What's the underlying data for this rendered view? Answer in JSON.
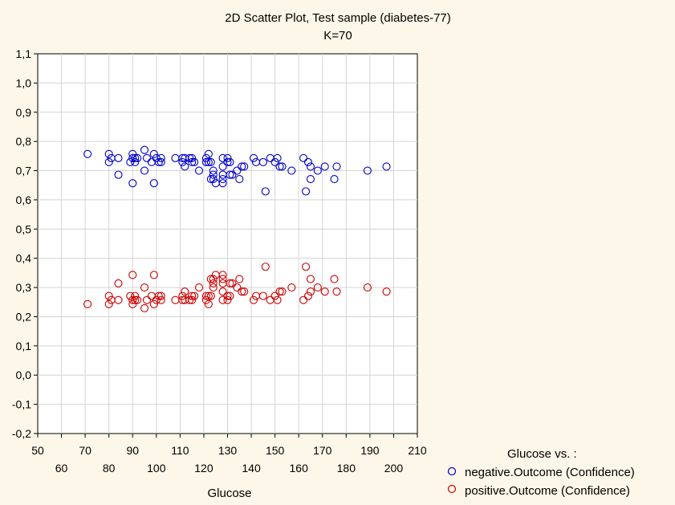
{
  "chart_data": {
    "type": "scatter",
    "title": "2D Scatter Plot, Test sample (diabetes-77)",
    "subtitle": "K=70",
    "xlabel": "Glucose",
    "ylabel": "",
    "xlim": [
      50,
      210
    ],
    "ylim": [
      -0.2,
      1.1
    ],
    "grid": true,
    "x_ticks_upper": [
      "50",
      "70",
      "90",
      "110",
      "130",
      "150",
      "170",
      "190",
      "210"
    ],
    "x_ticks_lower": [
      "60",
      "80",
      "100",
      "120",
      "140",
      "160",
      "180",
      "200"
    ],
    "y_ticks": [
      "1,1",
      "1,0",
      "0,9",
      "0,8",
      "0,7",
      "0,6",
      "0,5",
      "0,4",
      "0,3",
      "0,2",
      "0,1",
      "0,0",
      "-0,1",
      "-0,2"
    ],
    "legend": {
      "title": "Glucose  vs. :",
      "placement": "bottom-right"
    },
    "series": [
      {
        "name": "negative.Outcome (Confidence)",
        "color": "#0000CC",
        "marker": "circle-open",
        "points": [
          [
            71,
            0.757
          ],
          [
            80,
            0.757
          ],
          [
            80,
            0.729
          ],
          [
            81,
            0.743
          ],
          [
            84,
            0.743
          ],
          [
            84,
            0.686
          ],
          [
            89,
            0.729
          ],
          [
            90,
            0.757
          ],
          [
            90,
            0.657
          ],
          [
            90,
            0.743
          ],
          [
            91,
            0.729
          ],
          [
            91,
            0.743
          ],
          [
            92,
            0.743
          ],
          [
            95,
            0.771
          ],
          [
            95,
            0.7
          ],
          [
            96,
            0.743
          ],
          [
            98,
            0.729
          ],
          [
            99,
            0.757
          ],
          [
            99,
            0.657
          ],
          [
            100,
            0.743
          ],
          [
            101,
            0.729
          ],
          [
            102,
            0.743
          ],
          [
            102,
            0.729
          ],
          [
            108,
            0.743
          ],
          [
            111,
            0.743
          ],
          [
            111,
            0.729
          ],
          [
            112,
            0.743
          ],
          [
            112,
            0.714
          ],
          [
            114,
            0.743
          ],
          [
            115,
            0.743
          ],
          [
            115,
            0.729
          ],
          [
            116,
            0.729
          ],
          [
            118,
            0.7
          ],
          [
            121,
            0.729
          ],
          [
            121,
            0.743
          ],
          [
            122,
            0.729
          ],
          [
            122,
            0.757
          ],
          [
            123,
            0.729
          ],
          [
            123,
            0.671
          ],
          [
            124,
            0.7
          ],
          [
            124,
            0.686
          ],
          [
            124,
            0.671
          ],
          [
            125,
            0.657
          ],
          [
            128,
            0.686
          ],
          [
            128,
            0.671
          ],
          [
            128,
            0.657
          ],
          [
            128,
            0.714
          ],
          [
            128,
            0.743
          ],
          [
            130,
            0.743
          ],
          [
            130,
            0.729
          ],
          [
            131,
            0.686
          ],
          [
            131,
            0.729
          ],
          [
            132,
            0.686
          ],
          [
            134,
            0.7
          ],
          [
            135,
            0.671
          ],
          [
            136,
            0.714
          ],
          [
            137,
            0.714
          ],
          [
            141,
            0.743
          ],
          [
            142,
            0.729
          ],
          [
            145,
            0.729
          ],
          [
            146,
            0.629
          ],
          [
            148,
            0.743
          ],
          [
            150,
            0.729
          ],
          [
            151,
            0.743
          ],
          [
            152,
            0.714
          ],
          [
            153,
            0.714
          ],
          [
            157,
            0.7
          ],
          [
            162,
            0.743
          ],
          [
            163,
            0.629
          ],
          [
            164,
            0.729
          ],
          [
            165,
            0.671
          ],
          [
            165,
            0.714
          ],
          [
            168,
            0.7
          ],
          [
            171,
            0.714
          ],
          [
            175,
            0.671
          ],
          [
            176,
            0.714
          ],
          [
            189,
            0.7
          ],
          [
            197,
            0.714
          ]
        ]
      },
      {
        "name": "positive.Outcome (Confidence)",
        "color": "#CC0000",
        "marker": "circle-open",
        "points": [
          [
            71,
            0.243
          ],
          [
            80,
            0.243
          ],
          [
            80,
            0.271
          ],
          [
            81,
            0.257
          ],
          [
            84,
            0.257
          ],
          [
            84,
            0.314
          ],
          [
            89,
            0.271
          ],
          [
            90,
            0.243
          ],
          [
            90,
            0.343
          ],
          [
            90,
            0.257
          ],
          [
            91,
            0.271
          ],
          [
            91,
            0.257
          ],
          [
            92,
            0.257
          ],
          [
            95,
            0.229
          ],
          [
            95,
            0.3
          ],
          [
            96,
            0.257
          ],
          [
            98,
            0.271
          ],
          [
            99,
            0.243
          ],
          [
            99,
            0.343
          ],
          [
            100,
            0.257
          ],
          [
            101,
            0.271
          ],
          [
            102,
            0.257
          ],
          [
            102,
            0.271
          ],
          [
            108,
            0.257
          ],
          [
            111,
            0.257
          ],
          [
            111,
            0.271
          ],
          [
            112,
            0.257
          ],
          [
            112,
            0.286
          ],
          [
            114,
            0.257
          ],
          [
            115,
            0.257
          ],
          [
            115,
            0.271
          ],
          [
            116,
            0.271
          ],
          [
            118,
            0.3
          ],
          [
            121,
            0.271
          ],
          [
            121,
            0.257
          ],
          [
            122,
            0.271
          ],
          [
            122,
            0.243
          ],
          [
            123,
            0.271
          ],
          [
            123,
            0.329
          ],
          [
            124,
            0.3
          ],
          [
            124,
            0.314
          ],
          [
            124,
            0.329
          ],
          [
            125,
            0.343
          ],
          [
            128,
            0.314
          ],
          [
            128,
            0.329
          ],
          [
            128,
            0.343
          ],
          [
            128,
            0.286
          ],
          [
            128,
            0.257
          ],
          [
            130,
            0.257
          ],
          [
            130,
            0.271
          ],
          [
            131,
            0.314
          ],
          [
            131,
            0.271
          ],
          [
            132,
            0.314
          ],
          [
            134,
            0.3
          ],
          [
            135,
            0.329
          ],
          [
            136,
            0.286
          ],
          [
            137,
            0.286
          ],
          [
            141,
            0.257
          ],
          [
            142,
            0.271
          ],
          [
            145,
            0.271
          ],
          [
            146,
            0.371
          ],
          [
            148,
            0.257
          ],
          [
            150,
            0.271
          ],
          [
            151,
            0.257
          ],
          [
            152,
            0.286
          ],
          [
            153,
            0.286
          ],
          [
            157,
            0.3
          ],
          [
            162,
            0.257
          ],
          [
            163,
            0.371
          ],
          [
            164,
            0.271
          ],
          [
            165,
            0.329
          ],
          [
            165,
            0.286
          ],
          [
            168,
            0.3
          ],
          [
            171,
            0.286
          ],
          [
            175,
            0.329
          ],
          [
            176,
            0.286
          ],
          [
            189,
            0.3
          ],
          [
            197,
            0.286
          ]
        ]
      }
    ]
  }
}
